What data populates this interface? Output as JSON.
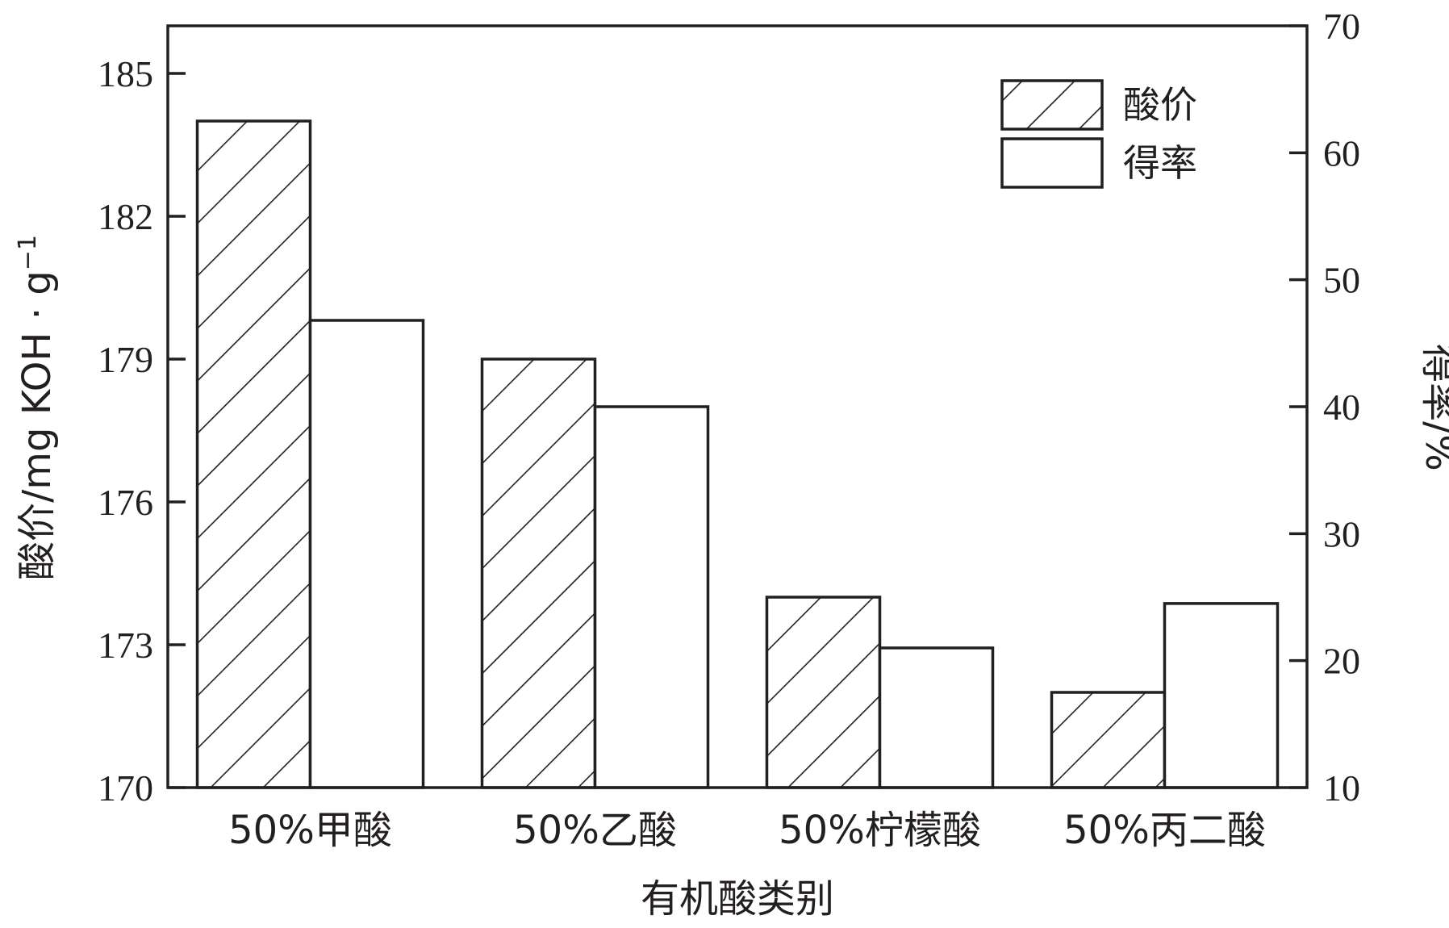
{
  "chart_data": {
    "type": "bar",
    "categories": [
      "50%甲酸",
      "50%乙酸",
      "50%柠檬酸",
      "50%丙二酸"
    ],
    "series": [
      {
        "name": "酸价",
        "axis": "left",
        "pattern": "hatch",
        "values": [
          184.0,
          179.0,
          174.0,
          172.0
        ]
      },
      {
        "name": "得率",
        "axis": "right",
        "pattern": "open",
        "values": [
          46.8,
          40.0,
          21.0,
          24.5
        ]
      }
    ],
    "xlabel": "有机酸类别",
    "ylabel_left": "酸价/mg KOH · g",
    "ylabel_left_sup": "−1",
    "ylabel_right": "得率/%",
    "ylim_left": [
      170,
      186
    ],
    "yticks_left": [
      "170",
      "173",
      "176",
      "179",
      "182",
      "185"
    ],
    "ylim_right": [
      10,
      70
    ],
    "yticks_right": [
      "10",
      "20",
      "30",
      "40",
      "50",
      "60",
      "70"
    ],
    "legend_position": "top-right",
    "grid": false,
    "colors": {
      "stroke": "#231f20",
      "fill": "#ffffff"
    }
  }
}
